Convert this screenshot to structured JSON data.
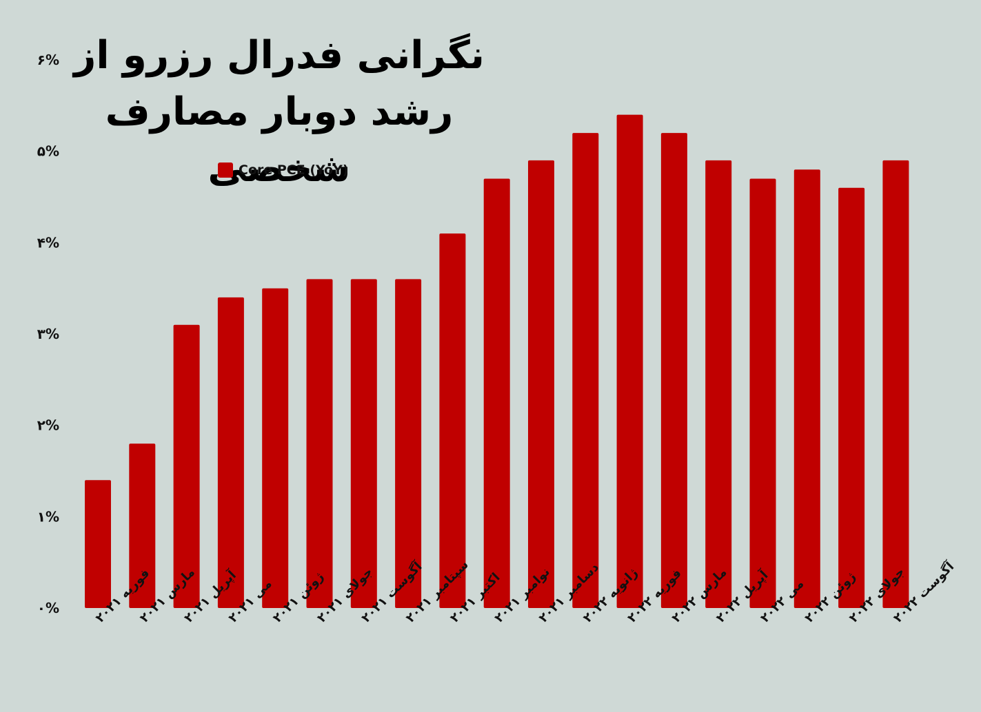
{
  "chart_data": {
    "type": "bar",
    "title": "نگرانی فدرال رزرو از رشد دوبار مصارف شخصی",
    "legend": "Core PCE (YoY)",
    "legend_position": "top-left",
    "categories": [
      "فوریه ۲۰۲۱",
      "مارس ۲۰۲۱",
      "آپریل ۲۰۲۱",
      "می ۲۰۲۱",
      "ژوئن ۲۰۲۱",
      "جولای ۲۰۲۱",
      "آگوست ۲۰۲۱",
      "سپتامبر ۲۰۲۱",
      "اکتبر ۲۰۲۱",
      "نوامبر ۲۰۲۱",
      "دسامبر ۲۰۲۱",
      "ژانویه ۲۰۲۲",
      "فوریه ۲۰۲۲",
      "مارس ۲۰۲۲",
      "آپریل ۲۰۲۲",
      "می ۲۰۲۲",
      "ژوئن ۲۰۲۲",
      "جولای ۲۰۲۲",
      "آگوست ۲۰۲۲"
    ],
    "values": [
      1.4,
      1.8,
      3.1,
      3.4,
      3.5,
      3.6,
      3.6,
      3.6,
      4.1,
      4.7,
      4.9,
      5.2,
      5.4,
      5.2,
      4.9,
      4.7,
      4.8,
      4.6,
      4.9
    ],
    "y_ticks": [
      "۰%",
      "۱%",
      "۲%",
      "۳%",
      "۴%",
      "۵%",
      "۶%"
    ],
    "ylim": [
      0,
      6
    ],
    "grid": false,
    "bar_color": "#c00000",
    "background_color": "#cfd9d6"
  }
}
